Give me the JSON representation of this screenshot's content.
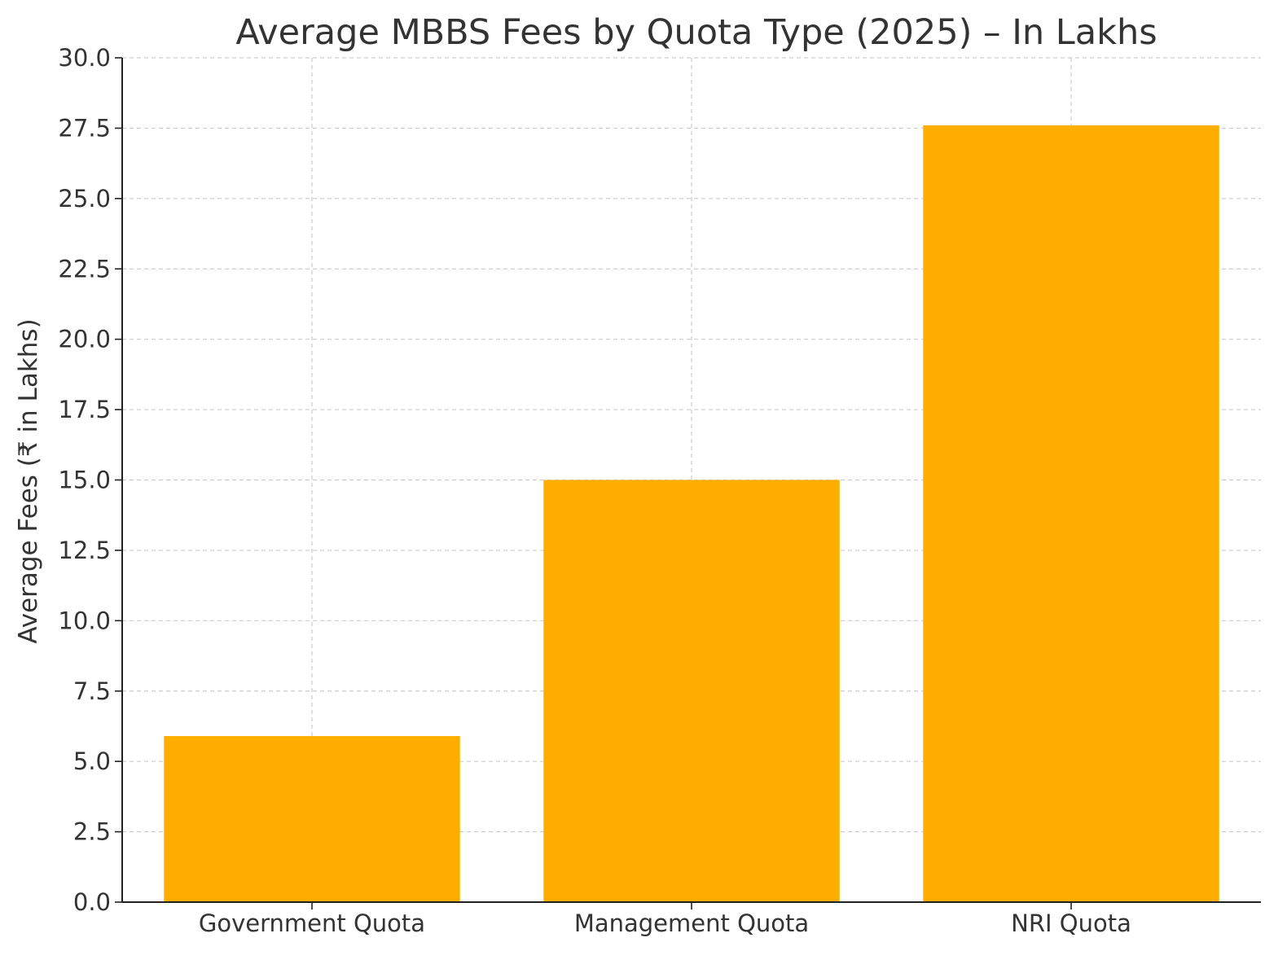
{
  "chart_data": {
    "type": "bar",
    "title": "Average MBBS Fees by Quota Type (2025) – In Lakhs",
    "xlabel": "",
    "ylabel": "Average Fees (₹ in Lakhs)",
    "categories": [
      "Government Quota",
      "Management Quota",
      "NRI Quota"
    ],
    "values": [
      5.9,
      15.0,
      27.6
    ],
    "ylim": [
      0,
      30
    ],
    "yticks": [
      "0.0",
      "2.5",
      "5.0",
      "7.5",
      "10.0",
      "12.5",
      "15.0",
      "17.5",
      "20.0",
      "22.5",
      "25.0",
      "27.5",
      "30.0"
    ],
    "grid": true,
    "colors": {
      "bar": "#FFAE00",
      "grid": "#cccccc",
      "axis": "#222222",
      "text": "#333333"
    }
  }
}
